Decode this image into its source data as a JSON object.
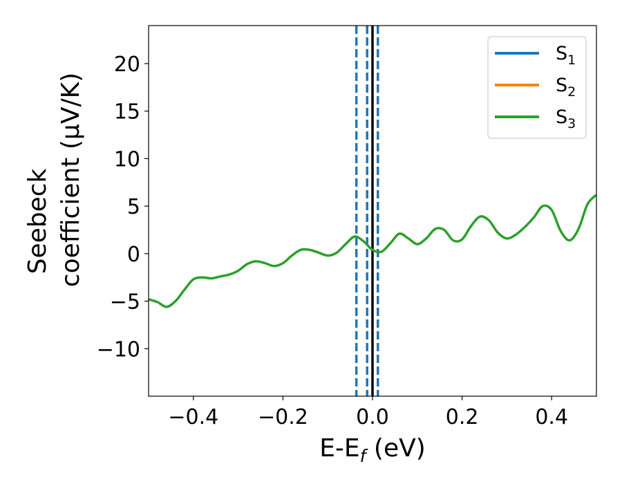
{
  "chart_data": {
    "type": "line",
    "xlabel": {
      "main": "E-E",
      "sub": "f",
      "unit": " (eV)"
    },
    "ylabel": {
      "line1": "Seebeck",
      "line2": "coefficient  (μV/K)"
    },
    "xlim": [
      -0.5,
      0.5
    ],
    "ylim": [
      -15,
      24
    ],
    "xticks": [
      -0.4,
      -0.2,
      0.0,
      0.2,
      0.4
    ],
    "xtick_labels": [
      "−0.4",
      "−0.2",
      "0.0",
      "0.2",
      "0.4"
    ],
    "yticks": [
      -10,
      -5,
      0,
      5,
      10,
      15,
      20
    ],
    "ytick_labels": [
      "−10",
      "−5",
      "0",
      "5",
      "10",
      "15",
      "20"
    ],
    "grid": false,
    "legend_position": "top-right",
    "series": [
      {
        "name": "S",
        "sub": "1",
        "color": "#1f77b4",
        "line_width": 3
      },
      {
        "name": "S",
        "sub": "2",
        "color": "#ff7f0e",
        "line_width": 3
      },
      {
        "name": "S",
        "sub": "3",
        "color": "#2ca02c",
        "line_width": 3.5,
        "x": [
          -0.5,
          -0.48,
          -0.46,
          -0.44,
          -0.42,
          -0.4,
          -0.38,
          -0.36,
          -0.34,
          -0.32,
          -0.3,
          -0.28,
          -0.26,
          -0.24,
          -0.22,
          -0.2,
          -0.18,
          -0.16,
          -0.14,
          -0.12,
          -0.1,
          -0.08,
          -0.06,
          -0.04,
          -0.02,
          0.0,
          0.02,
          0.04,
          0.06,
          0.08,
          0.1,
          0.12,
          0.14,
          0.16,
          0.18,
          0.2,
          0.22,
          0.24,
          0.26,
          0.28,
          0.3,
          0.32,
          0.34,
          0.36,
          0.38,
          0.4,
          0.42,
          0.44,
          0.46,
          0.48,
          0.5
        ],
        "y": [
          -4.8,
          -5.1,
          -5.6,
          -5.0,
          -3.8,
          -2.7,
          -2.5,
          -2.6,
          -2.4,
          -2.2,
          -1.8,
          -1.1,
          -0.8,
          -1.0,
          -1.3,
          -1.0,
          -0.2,
          0.4,
          0.4,
          0.1,
          -0.2,
          0.1,
          1.0,
          1.8,
          1.3,
          0.4,
          0.2,
          1.1,
          2.1,
          1.6,
          1.0,
          1.6,
          2.6,
          2.5,
          1.4,
          1.5,
          2.9,
          3.9,
          3.5,
          2.2,
          1.6,
          2.0,
          2.8,
          3.8,
          5.0,
          4.6,
          2.4,
          1.4,
          2.6,
          5.2,
          6.2
        ]
      }
    ],
    "vlines": [
      {
        "x": -0.036,
        "style": "dashed",
        "color": "#1f77b4"
      },
      {
        "x": -0.012,
        "style": "dashed",
        "color": "#1f77b4"
      },
      {
        "x": 0.0,
        "style": "solid",
        "color": "#000000"
      },
      {
        "x": 0.012,
        "style": "dashed",
        "color": "#1f77b4"
      }
    ]
  }
}
